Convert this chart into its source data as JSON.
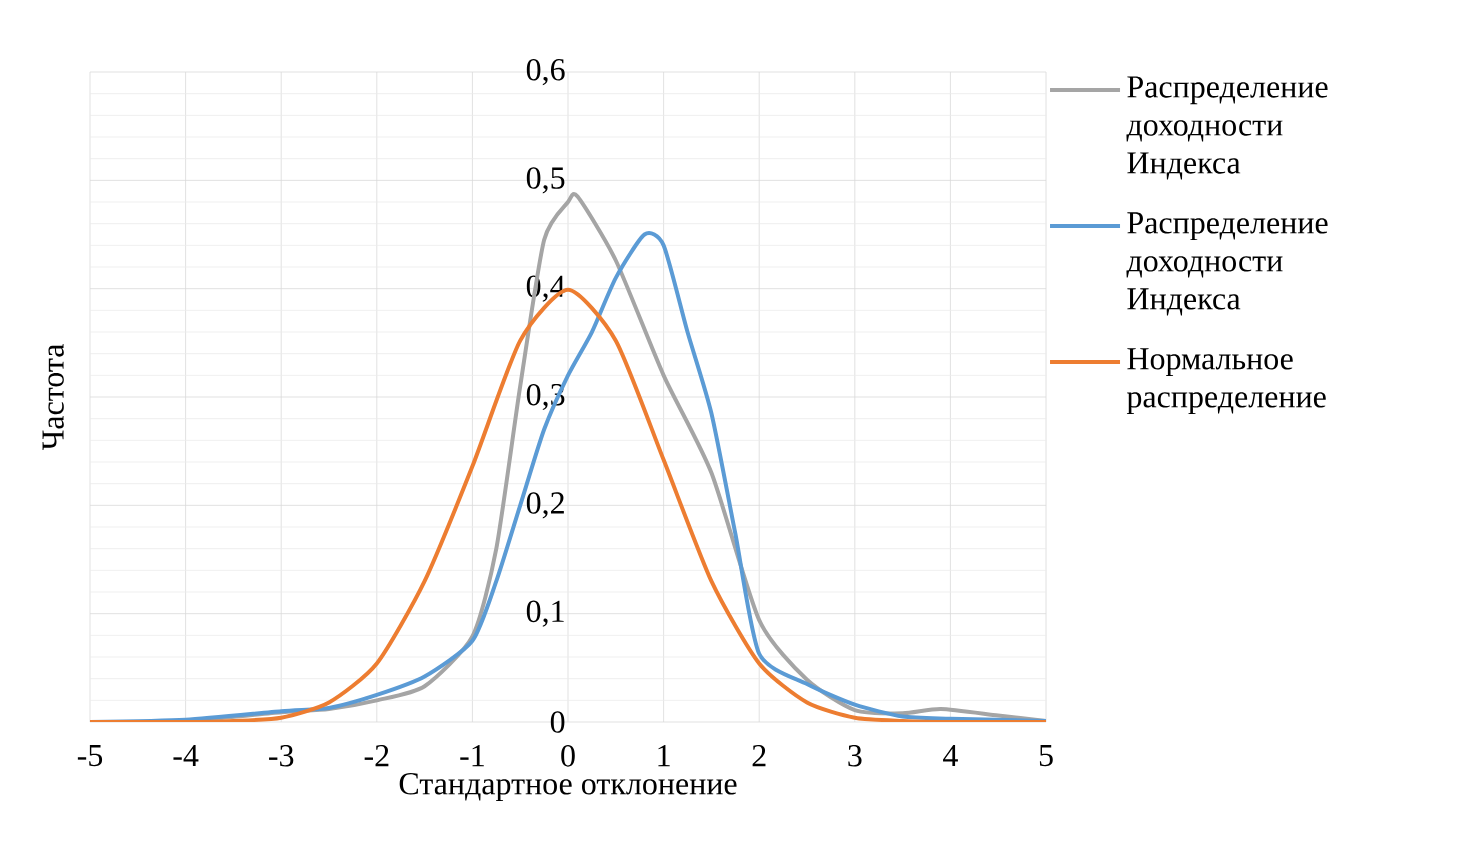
{
  "chart_data": {
    "type": "line",
    "xlabel": "Стандартное отклонение",
    "ylabel": "Частота",
    "xlim": [
      -5,
      5
    ],
    "xticks": [
      -5,
      -4,
      -3,
      -2,
      -1,
      0,
      1,
      2,
      3,
      4,
      5
    ],
    "ylim": [
      0,
      0.6
    ],
    "yticks": [
      {
        "value": 0,
        "label": "0"
      },
      {
        "value": 0.1,
        "label": "0,1"
      },
      {
        "value": 0.2,
        "label": "0,2"
      },
      {
        "value": 0.3,
        "label": "0,3"
      },
      {
        "value": 0.4,
        "label": "0,4"
      },
      {
        "value": 0.5,
        "label": "0,5"
      },
      {
        "value": 0.6,
        "label": "0,6"
      }
    ],
    "grid": true,
    "legend": "right",
    "line_style": "solid",
    "marker": "none",
    "series": [
      {
        "name": "Распределение доходности Индекса",
        "color": "#a5a5a5",
        "x": [
          -5,
          -4,
          -3,
          -2.5,
          -2,
          -1.5,
          -1,
          -0.75,
          -0.5,
          -0.25,
          0,
          0.1,
          0.5,
          1,
          1.5,
          2,
          2.5,
          3,
          3.5,
          3.9,
          4.5,
          5
        ],
        "values": [
          0,
          0.001,
          0.009,
          0.012,
          0.02,
          0.033,
          0.079,
          0.16,
          0.31,
          0.445,
          0.48,
          0.485,
          0.426,
          0.32,
          0.23,
          0.094,
          0.039,
          0.011,
          0.008,
          0.012,
          0.006,
          0.001
        ]
      },
      {
        "name": "Распределение доходности Индекса",
        "color": "#5b9bd5",
        "x": [
          -5,
          -4,
          -3,
          -2.5,
          -2,
          -1.5,
          -1,
          -0.75,
          -0.5,
          -0.25,
          0,
          0.25,
          0.5,
          0.8,
          1,
          1.25,
          1.5,
          1.75,
          2,
          2.5,
          3,
          3.5,
          4,
          5
        ],
        "values": [
          0,
          0.002,
          0.01,
          0.013,
          0.025,
          0.042,
          0.075,
          0.13,
          0.2,
          0.27,
          0.32,
          0.36,
          0.41,
          0.45,
          0.44,
          0.36,
          0.285,
          0.174,
          0.063,
          0.035,
          0.016,
          0.005,
          0.003,
          0.001
        ]
      },
      {
        "name": "Нормальное распределение",
        "color": "#ed7d31",
        "x": [
          -5,
          -4,
          -3.5,
          -3,
          -2.5,
          -2,
          -1.5,
          -1,
          -0.5,
          0,
          0.5,
          1,
          1.5,
          2,
          2.5,
          3,
          3.5,
          4,
          5
        ],
        "values": [
          0,
          0,
          0.001,
          0.004,
          0.018,
          0.054,
          0.13,
          0.236,
          0.352,
          0.399,
          0.352,
          0.242,
          0.13,
          0.054,
          0.018,
          0.004,
          0.001,
          0,
          0
        ]
      }
    ]
  }
}
